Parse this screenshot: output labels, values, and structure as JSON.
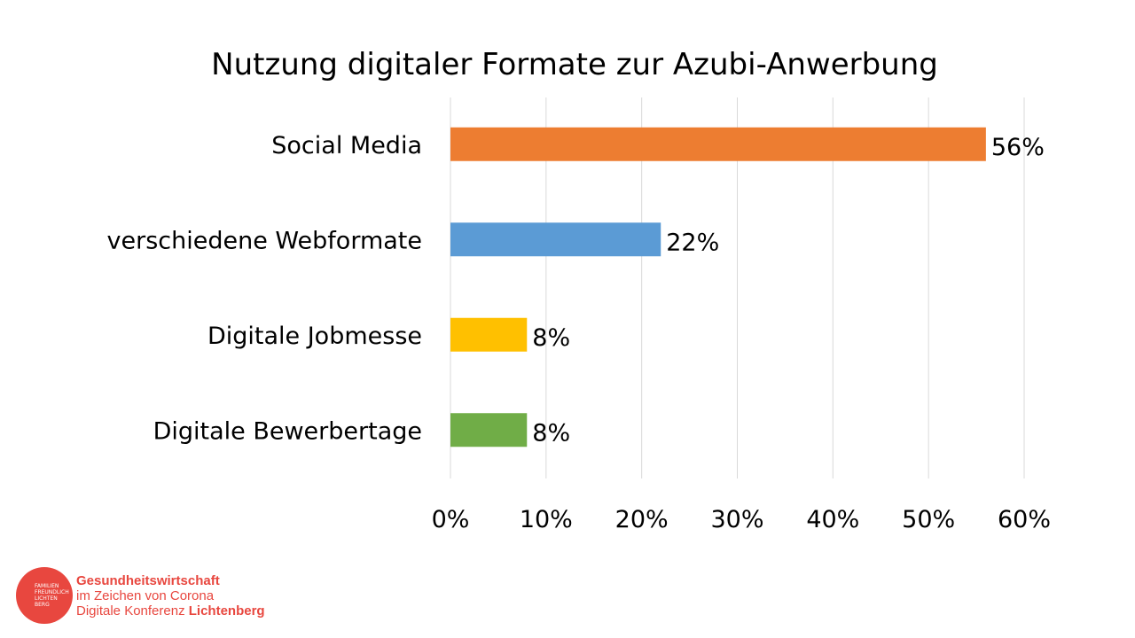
{
  "chart_data": {
    "type": "bar",
    "orientation": "horizontal",
    "title": "Nutzung digitaler Formate zur Azubi-Anwerbung",
    "categories": [
      "Social Media",
      "verschiedene Webformate",
      "Digitale Jobmesse",
      "Digitale Bewerbertage"
    ],
    "values": [
      56,
      22,
      8,
      8
    ],
    "data_labels": [
      "56%",
      "22%",
      "8%",
      "8%"
    ],
    "colors": [
      "#ed7d31",
      "#5b9bd5",
      "#ffc000",
      "#70ad47"
    ],
    "xlim": [
      0,
      60
    ],
    "xticks": [
      0,
      10,
      20,
      30,
      40,
      50,
      60
    ],
    "xtick_labels": [
      "0%",
      "10%",
      "20%",
      "30%",
      "40%",
      "50%",
      "60%"
    ],
    "grid": true,
    "xlabel": "",
    "ylabel": ""
  },
  "footer": {
    "logo_text": "FAMILIEN FREUNDLICH LICHTEN BERG",
    "line1": "Gesundheitswirtschaft",
    "line2": "im Zeichen von Corona",
    "line3_prefix": "Digitale Konferenz ",
    "line3_bold": "Lichtenberg"
  }
}
